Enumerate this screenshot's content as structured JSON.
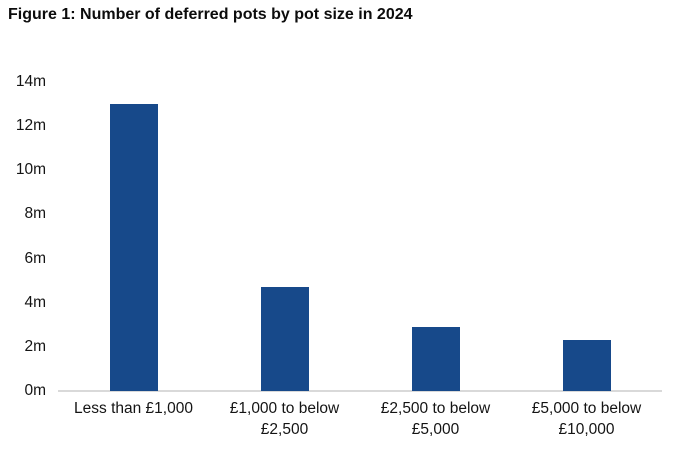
{
  "chart_data": {
    "type": "bar",
    "title": "Figure 1: Number of deferred pots by pot size in 2024",
    "categories": [
      "Less than £1,000",
      "£1,000 to below £2,500",
      "£2,500 to below £5,000",
      "£5,000 to below £10,000"
    ],
    "values": [
      13.0,
      4.7,
      2.9,
      2.3
    ],
    "unit": "millions of pots",
    "xlabel": "",
    "ylabel": "",
    "ylim": [
      0,
      14
    ],
    "yticks": [
      {
        "value": 0,
        "label": "0m"
      },
      {
        "value": 2,
        "label": "2m"
      },
      {
        "value": 4,
        "label": "4m"
      },
      {
        "value": 6,
        "label": "6m"
      },
      {
        "value": 8,
        "label": "8m"
      },
      {
        "value": 10,
        "label": "10m"
      },
      {
        "value": 12,
        "label": "12m"
      },
      {
        "value": 14,
        "label": "14m"
      }
    ],
    "grid": false,
    "legend": false,
    "bar_color": "#17498a",
    "axis_line_color": "#d9d9d9",
    "title_color": "#0c0c0c",
    "label_color": "#141414",
    "background_color": "#ffffff"
  }
}
